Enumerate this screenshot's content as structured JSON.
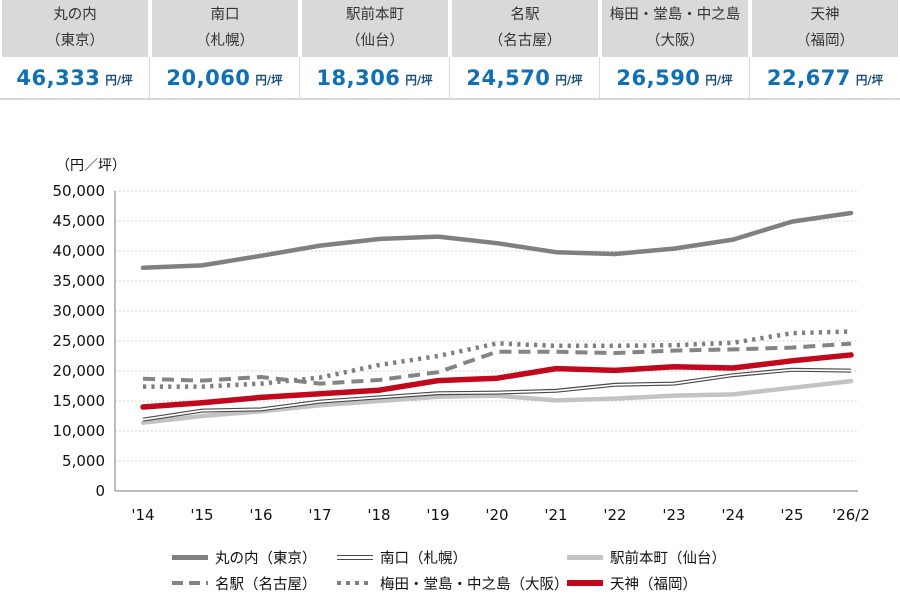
{
  "summary_table": {
    "unit_suffix": "円/坪",
    "items": [
      {
        "key": "marunouchi-tokyo",
        "name": "丸の内",
        "city": "（東京）",
        "value": "46,333"
      },
      {
        "key": "minamiguchi-sapporo",
        "name": "南口",
        "city": "（札幌）",
        "value": "20,060"
      },
      {
        "key": "ekimae-sendai",
        "name": "駅前本町",
        "city": "（仙台）",
        "value": "18,306"
      },
      {
        "key": "meieki-nagoya",
        "name": "名駅",
        "city": "（名古屋）",
        "value": "24,570"
      },
      {
        "key": "umeda-osaka",
        "name": "梅田・堂島・中之島",
        "city": "（大阪）",
        "value": "26,590"
      },
      {
        "key": "tenjin-fukuoka",
        "name": "天神",
        "city": "（福岡）",
        "value": "22,677"
      }
    ]
  },
  "chart_data": {
    "type": "line",
    "unit_label": "（円／坪）",
    "x": [
      "'14",
      "'15",
      "'16",
      "'17",
      "'18",
      "'19",
      "'20",
      "'21",
      "'22",
      "'23",
      "'24",
      "'25",
      "'26/2"
    ],
    "ylim": [
      0,
      50000
    ],
    "yticks": [
      0,
      5000,
      10000,
      15000,
      20000,
      25000,
      30000,
      35000,
      40000,
      45000,
      50000
    ],
    "grid": "horizontal-dotted",
    "legend_position": "bottom",
    "series": [
      {
        "key": "marunouchi-tokyo",
        "name": "丸の内（東京）",
        "style": "solid-thick",
        "color": "#808080",
        "values": [
          37200,
          37600,
          39200,
          40900,
          42000,
          42400,
          41300,
          39800,
          39500,
          40400,
          41900,
          44900,
          46333
        ]
      },
      {
        "key": "minamiguchi-sapporo",
        "name": "南口（札幌）",
        "style": "double",
        "color": "#4a4a4a",
        "values": [
          11900,
          13400,
          13600,
          14900,
          15600,
          16300,
          16400,
          16700,
          17700,
          17900,
          19300,
          20200,
          20060
        ]
      },
      {
        "key": "ekimae-sendai",
        "name": "駅前本町（仙台）",
        "style": "solid-thick",
        "color": "#c3c3c3",
        "values": [
          11400,
          12500,
          13300,
          14300,
          15000,
          15700,
          15900,
          15100,
          15400,
          15900,
          16100,
          17200,
          18306
        ]
      },
      {
        "key": "meieki-nagoya",
        "name": "名駅（名古屋）",
        "style": "dashed",
        "color": "#848484",
        "values": [
          18700,
          18400,
          19000,
          17900,
          18500,
          19800,
          23200,
          23200,
          23000,
          23400,
          23600,
          23900,
          24570
        ]
      },
      {
        "key": "umeda-osaka",
        "name": "梅田・堂島・中之島（大阪）",
        "style": "dotted",
        "color": "#7f7f7f",
        "values": [
          17400,
          17400,
          17900,
          18900,
          21000,
          22500,
          24600,
          24200,
          24200,
          24300,
          24700,
          26300,
          26590
        ]
      },
      {
        "key": "tenjin-fukuoka",
        "name": "天神（福岡）",
        "style": "solid-thick",
        "color": "#c2081c",
        "values": [
          14000,
          14700,
          15600,
          16200,
          16800,
          18400,
          18800,
          20400,
          20100,
          20700,
          20500,
          21700,
          22677
        ]
      }
    ]
  }
}
